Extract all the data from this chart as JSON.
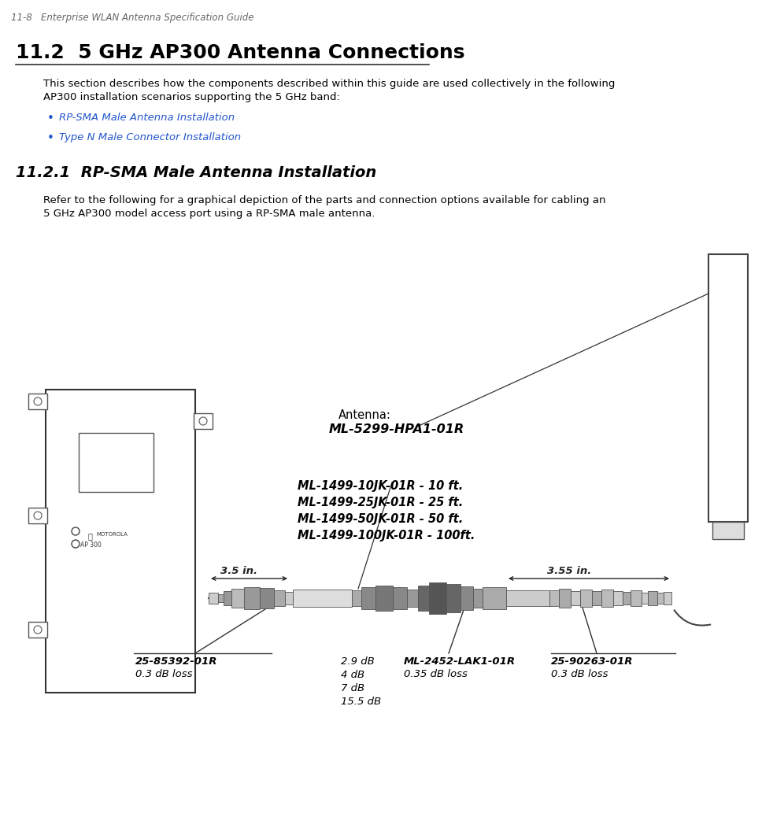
{
  "page_header": "11-8   Enterprise WLAN Antenna Specification Guide",
  "section_title": "11.2  5 GHz AP300 Antenna Connections",
  "section_body1": "This section describes how the components described within this guide are used collectively in the following",
  "section_body2": "AP300 installation scenarios supporting the 5 GHz band:",
  "bullet1": "RP-SMA Male Antenna Installation",
  "bullet2": "Type N Male Connector Installation",
  "subsection_title": "11.2.1  RP-SMA Male Antenna Installation",
  "subsection_body1": "Refer to the following for a graphical depiction of the parts and connection options available for cabling an",
  "subsection_body2": "5 GHz AP300 model access port using a RP-SMA male antenna.",
  "antenna_label": "Antenna:",
  "antenna_model": "ML-5299-HPA1-01R",
  "cable_lines": [
    "ML-1499-10JK-01R - 10 ft.",
    "ML-1499-25JK-01R - 25 ft.",
    "ML-1499-50JK-01R - 50 ft.",
    "ML-1499-100JK-01R - 100ft."
  ],
  "dim1_label": "3.5 in.",
  "dim2_label": "3.55 in.",
  "db_labels": [
    "2.9 dB",
    "4 dB",
    "7 dB",
    "15.5 dB"
  ],
  "part1_label": "25-85392-01R",
  "part1_loss": "0.3 dB loss",
  "part2_label": "ML-2452-LAK1-01R",
  "part2_loss": "0.35 dB loss",
  "part3_label": "25-90263-01R",
  "part3_loss": "0.3 dB loss",
  "ap_label": "AP 300",
  "motorola_label": "MOTOROLA",
  "bg_color": "#ffffff",
  "text_color": "#000000",
  "blue_color": "#2255cc",
  "header_color": "#666666",
  "line_color": "#333333",
  "connector_dark": "#555555",
  "connector_mid": "#888888",
  "connector_light": "#bbbbbb"
}
